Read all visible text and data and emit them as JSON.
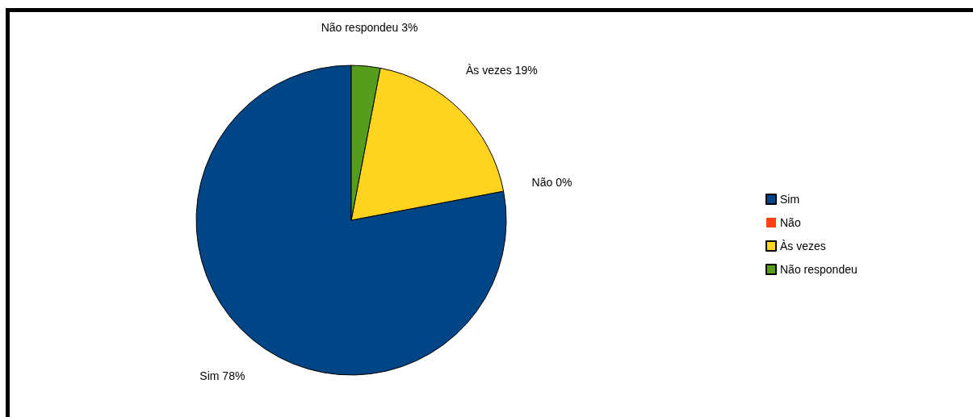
{
  "chart_data": {
    "type": "pie",
    "categories": [
      "Sim",
      "Não",
      "Às vezes",
      "Não respondeu"
    ],
    "values": [
      78,
      0,
      19,
      3
    ],
    "colors": [
      "#004586",
      "#ff420e",
      "#ffd320",
      "#579d1c"
    ],
    "value_labels": [
      "78%",
      "0%",
      "19%",
      "3%"
    ],
    "legend": "right"
  }
}
